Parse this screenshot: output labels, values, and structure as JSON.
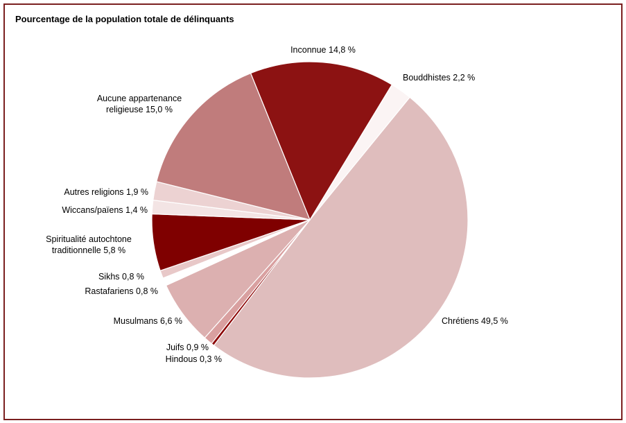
{
  "chart_data": {
    "type": "pie",
    "title": "Pourcentage de la population totale de délinquants",
    "categories": [
      "Inconnue",
      "Bouddhistes",
      "Chrétiens",
      "Hindous",
      "Juifs",
      "Musulmans",
      "Rastafariens",
      "Sikhs",
      "Spiritualité autochtone traditionnelle",
      "Wiccans/païens",
      "Autres religions",
      "Aucune appartenance religieuse"
    ],
    "values": [
      14.8,
      2.2,
      49.5,
      0.3,
      0.9,
      6.6,
      0.8,
      0.8,
      5.8,
      1.4,
      1.9,
      15.0
    ],
    "value_labels": [
      "14,8 %",
      "2,2 %",
      "49,5 %",
      "0,3 %",
      "0,9 %",
      "6,6 %",
      "0,8 %",
      "0,8 %",
      "5,8 %",
      "1,4 %",
      "1,9 %",
      "15,0 %"
    ],
    "colors": [
      "#8c1212",
      "#fbf4f4",
      "#dfbdbd",
      "#8b0000",
      "#d9a0a0",
      "#dcb0b0",
      "#ffffff",
      "#e8c8c8",
      "#7f0000",
      "#f3e4e4",
      "#ecd2d2",
      "#c07c7c"
    ]
  }
}
